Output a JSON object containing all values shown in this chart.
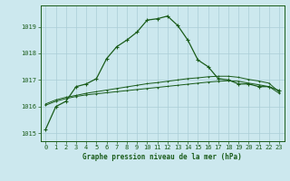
{
  "title": "Graphe pression niveau de la mer (hPa)",
  "bg_color": "#cce8ee",
  "grid_color": "#aacdd6",
  "line_color": "#1a5c1a",
  "xlim": [
    -0.5,
    23.5
  ],
  "ylim": [
    1014.7,
    1019.8
  ],
  "yticks": [
    1015,
    1016,
    1017,
    1018,
    1019
  ],
  "xticks": [
    0,
    1,
    2,
    3,
    4,
    5,
    6,
    7,
    8,
    9,
    10,
    11,
    12,
    13,
    14,
    15,
    16,
    17,
    18,
    19,
    20,
    21,
    22,
    23
  ],
  "series1_x": [
    0,
    1,
    2,
    3,
    4,
    5,
    6,
    7,
    8,
    9,
    10,
    11,
    12,
    13,
    14,
    15,
    16,
    17,
    18,
    19,
    20,
    21,
    22,
    23
  ],
  "series1_y": [
    1015.15,
    1016.0,
    1016.2,
    1016.75,
    1016.85,
    1017.05,
    1017.8,
    1018.25,
    1018.5,
    1018.8,
    1019.25,
    1019.3,
    1019.4,
    1019.05,
    1018.5,
    1017.75,
    1017.5,
    1017.05,
    1017.0,
    1016.85,
    1016.85,
    1016.75,
    1016.75,
    1016.6
  ],
  "series2_x": [
    0,
    1,
    2,
    3,
    4,
    5,
    6,
    7,
    8,
    9,
    10,
    11,
    12,
    13,
    14,
    15,
    16,
    17,
    18,
    19,
    20,
    21,
    22,
    23
  ],
  "series2_y": [
    1016.05,
    1016.2,
    1016.3,
    1016.38,
    1016.44,
    1016.48,
    1016.52,
    1016.56,
    1016.6,
    1016.64,
    1016.68,
    1016.72,
    1016.76,
    1016.8,
    1016.84,
    1016.88,
    1016.92,
    1016.95,
    1016.97,
    1016.95,
    1016.88,
    1016.82,
    1016.75,
    1016.5
  ],
  "series3_x": [
    0,
    1,
    2,
    3,
    4,
    5,
    6,
    7,
    8,
    9,
    10,
    11,
    12,
    13,
    14,
    15,
    16,
    17,
    18,
    19,
    20,
    21,
    22,
    23
  ],
  "series3_y": [
    1016.1,
    1016.25,
    1016.35,
    1016.42,
    1016.5,
    1016.56,
    1016.62,
    1016.68,
    1016.74,
    1016.8,
    1016.86,
    1016.9,
    1016.95,
    1017.0,
    1017.05,
    1017.08,
    1017.12,
    1017.14,
    1017.14,
    1017.1,
    1017.02,
    1016.96,
    1016.88,
    1016.55
  ]
}
